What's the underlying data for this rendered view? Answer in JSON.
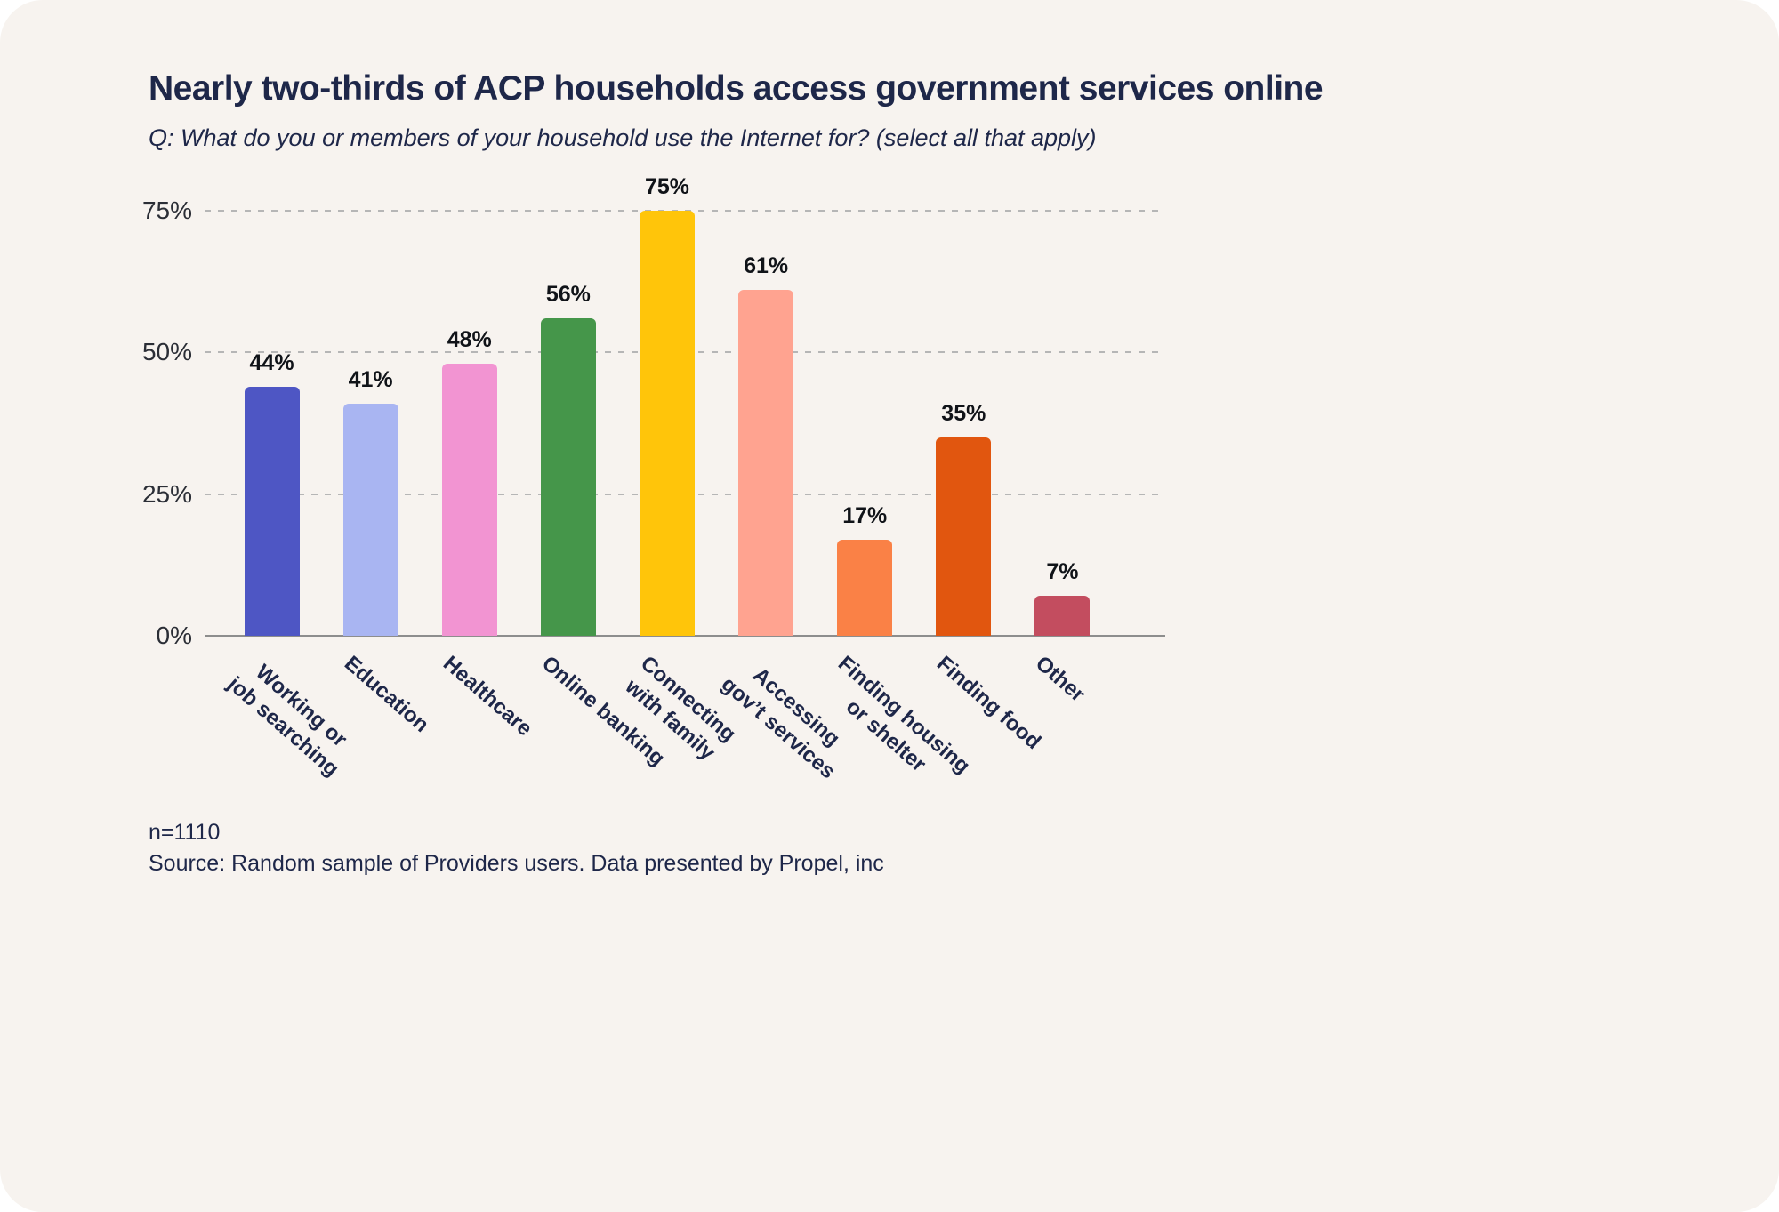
{
  "chart_data": {
    "type": "bar",
    "title": "Nearly two-thirds of ACP households access government services online",
    "subtitle": "Q: What do you or members of your household use the Internet for? (select all that apply)",
    "categories": [
      "Working or\njob searching",
      "Education",
      "Healthcare",
      "Online banking",
      "Connecting\nwith family",
      "Accessing\ngov’t services",
      "Finding housing\nor shelter",
      "Finding food",
      "Other"
    ],
    "values": [
      44,
      41,
      48,
      56,
      75,
      61,
      17,
      35,
      7
    ],
    "value_labels": [
      "44%",
      "41%",
      "48%",
      "56%",
      "75%",
      "61%",
      "17%",
      "35%",
      "7%"
    ],
    "bar_colors": [
      "#4e56c4",
      "#a9b5f2",
      "#f294d2",
      "#45964a",
      "#ffc50a",
      "#ffa390",
      "#fa8146",
      "#e1560f",
      "#c34d5f"
    ],
    "y_ticks": [
      0,
      25,
      50,
      75
    ],
    "y_tick_labels": [
      "0%",
      "25%",
      "50%",
      "75%"
    ],
    "ylim": [
      0,
      80
    ],
    "xlabel": "",
    "ylabel": "",
    "grid": "horizontal-dashed",
    "legend": "none"
  },
  "footer": {
    "sample_size": "n=1110",
    "source": "Source: Random sample of Providers users. Data presented by Propel, inc"
  },
  "theme": {
    "card_background": "#f7f3ef",
    "page_background": "#ffffff",
    "text_color": "#1e2749",
    "gridline_color": "#b6b6b6",
    "axis_color": "#8d8d8d"
  }
}
